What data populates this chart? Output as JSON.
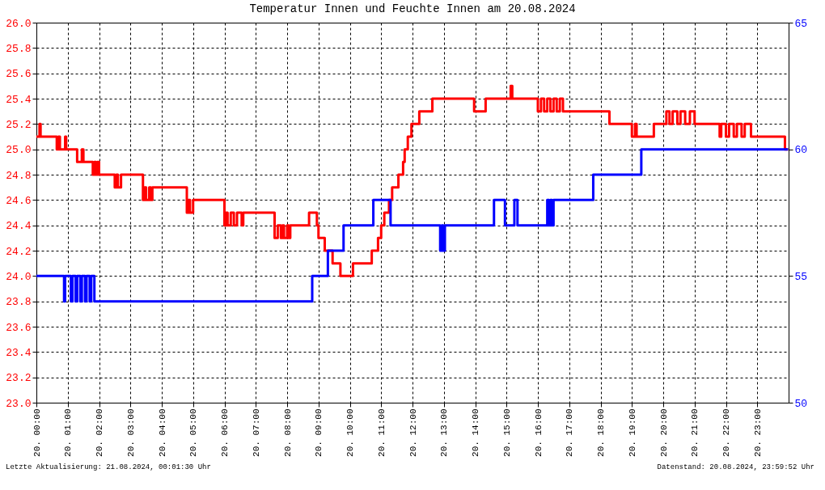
{
  "chart_data": {
    "type": "step",
    "title": "Temperatur Innen und Feuchte Innen am 20.08.2024",
    "xlim": [
      "2024-08-20T00:00",
      "2024-08-21T00:00"
    ],
    "xticks": [
      {
        "value": "2024-08-20T00:00",
        "label": "20. 00:00"
      },
      {
        "value": "2024-08-20T01:00",
        "label": "20. 01:00"
      },
      {
        "value": "2024-08-20T02:00",
        "label": "20. 02:00"
      },
      {
        "value": "2024-08-20T03:00",
        "label": "20. 03:00"
      },
      {
        "value": "2024-08-20T04:00",
        "label": "20. 04:00"
      },
      {
        "value": "2024-08-20T05:00",
        "label": "20. 05:00"
      },
      {
        "value": "2024-08-20T06:00",
        "label": "20. 06:00"
      },
      {
        "value": "2024-08-20T07:00",
        "label": "20. 07:00"
      },
      {
        "value": "2024-08-20T08:00",
        "label": "20. 08:00"
      },
      {
        "value": "2024-08-20T09:00",
        "label": "20. 09:00"
      },
      {
        "value": "2024-08-20T10:00",
        "label": "20. 10:00"
      },
      {
        "value": "2024-08-20T11:00",
        "label": "20. 11:00"
      },
      {
        "value": "2024-08-20T12:00",
        "label": "20. 12:00"
      },
      {
        "value": "2024-08-20T13:00",
        "label": "20. 13:00"
      },
      {
        "value": "2024-08-20T14:00",
        "label": "20. 14:00"
      },
      {
        "value": "2024-08-20T15:00",
        "label": "20. 15:00"
      },
      {
        "value": "2024-08-20T16:00",
        "label": "20. 16:00"
      },
      {
        "value": "2024-08-20T17:00",
        "label": "20. 17:00"
      },
      {
        "value": "2024-08-20T18:00",
        "label": "20. 18:00"
      },
      {
        "value": "2024-08-20T19:00",
        "label": "20. 19:00"
      },
      {
        "value": "2024-08-20T20:00",
        "label": "20. 20:00"
      },
      {
        "value": "2024-08-20T21:00",
        "label": "20. 21:00"
      },
      {
        "value": "2024-08-20T22:00",
        "label": "20. 22:00"
      },
      {
        "value": "2024-08-20T23:00",
        "label": "20. 23:00"
      }
    ],
    "ylim": [
      23,
      26
    ],
    "yticks": [
      {
        "value": 23,
        "label": "23.0"
      },
      {
        "value": 23.2,
        "label": "23.2"
      },
      {
        "value": 23.4,
        "label": "23.4"
      },
      {
        "value": 23.6,
        "label": "23.6"
      },
      {
        "value": 23.8,
        "label": "23.8"
      },
      {
        "value": 24,
        "label": "24.0"
      },
      {
        "value": 24.2,
        "label": "24.2"
      },
      {
        "value": 24.4,
        "label": "24.4"
      },
      {
        "value": 24.6,
        "label": "24.6"
      },
      {
        "value": 24.8,
        "label": "24.8"
      },
      {
        "value": 25,
        "label": "25.0"
      },
      {
        "value": 25.2,
        "label": "25.2"
      },
      {
        "value": 25.4,
        "label": "25.4"
      },
      {
        "value": 25.6,
        "label": "25.6"
      },
      {
        "value": 25.8,
        "label": "25.8"
      },
      {
        "value": 26,
        "label": "26.0"
      }
    ],
    "y2lim": [
      50,
      65
    ],
    "y2ticks": [
      50,
      55,
      60,
      65
    ],
    "grid": true,
    "line_style": "solid",
    "marker": "none",
    "series": [
      {
        "color": "#ff0000",
        "axis": "y",
        "x": [
          "2024-08-20T00:00",
          "2024-08-20T00:06",
          "2024-08-20T00:08",
          "2024-08-20T00:39",
          "2024-08-20T00:42",
          "2024-08-20T00:45",
          "2024-08-20T00:48",
          "2024-08-20T00:55",
          "2024-08-20T00:57",
          "2024-08-20T01:18",
          "2024-08-20T01:27",
          "2024-08-20T01:30",
          "2024-08-20T01:48",
          "2024-08-20T01:51",
          "2024-08-20T01:54",
          "2024-08-20T01:57",
          "2024-08-20T02:00",
          "2024-08-20T02:30",
          "2024-08-20T02:33",
          "2024-08-20T02:36",
          "2024-08-20T02:42",
          "2024-08-20T03:24",
          "2024-08-20T03:27",
          "2024-08-20T03:30",
          "2024-08-20T03:36",
          "2024-08-20T03:39",
          "2024-08-20T03:42",
          "2024-08-20T04:48",
          "2024-08-20T04:51",
          "2024-08-20T04:54",
          "2024-08-20T05:00",
          "2024-08-20T06:00",
          "2024-08-20T06:03",
          "2024-08-20T06:06",
          "2024-08-20T06:12",
          "2024-08-20T06:18",
          "2024-08-20T06:24",
          "2024-08-20T06:33",
          "2024-08-20T06:36",
          "2024-08-20T07:36",
          "2024-08-20T07:42",
          "2024-08-20T07:48",
          "2024-08-20T07:51",
          "2024-08-20T07:54",
          "2024-08-20T08:00",
          "2024-08-20T08:03",
          "2024-08-20T08:06",
          "2024-08-20T08:42",
          "2024-08-20T08:57",
          "2024-08-20T09:00",
          "2024-08-20T09:03",
          "2024-08-20T09:12",
          "2024-08-20T09:27",
          "2024-08-20T09:42",
          "2024-08-20T10:06",
          "2024-08-20T10:42",
          "2024-08-20T10:54",
          "2024-08-20T11:00",
          "2024-08-20T11:06",
          "2024-08-20T11:15",
          "2024-08-20T11:21",
          "2024-08-20T11:33",
          "2024-08-20T11:42",
          "2024-08-20T11:45",
          "2024-08-20T11:51",
          "2024-08-20T11:58",
          "2024-08-20T12:13",
          "2024-08-20T12:38",
          "2024-08-20T13:58",
          "2024-08-20T14:20",
          "2024-08-20T15:08",
          "2024-08-20T15:11",
          "2024-08-20T16:00",
          "2024-08-20T16:06",
          "2024-08-20T16:12",
          "2024-08-20T16:18",
          "2024-08-20T16:24",
          "2024-08-20T16:30",
          "2024-08-20T16:36",
          "2024-08-20T16:42",
          "2024-08-20T16:48",
          "2024-08-20T16:51",
          "2024-08-20T18:17",
          "2024-08-20T18:24",
          "2024-08-20T19:00",
          "2024-08-20T19:06",
          "2024-08-20T19:09",
          "2024-08-20T19:42",
          "2024-08-20T20:06",
          "2024-08-20T20:12",
          "2024-08-20T20:18",
          "2024-08-20T20:27",
          "2024-08-20T20:33",
          "2024-08-20T20:42",
          "2024-08-20T20:51",
          "2024-08-20T21:00",
          "2024-08-20T21:48",
          "2024-08-20T21:51",
          "2024-08-20T22:00",
          "2024-08-20T22:06",
          "2024-08-20T22:15",
          "2024-08-20T22:21",
          "2024-08-20T22:30",
          "2024-08-20T22:36",
          "2024-08-20T22:48",
          "2024-08-20T23:53",
          "2024-08-20T23:59"
        ],
        "values": [
          25.1,
          25.2,
          25.1,
          25.0,
          25.1,
          25.0,
          25.0,
          25.1,
          25.0,
          24.9,
          25.0,
          24.9,
          24.8,
          24.9,
          24.8,
          24.9,
          24.8,
          24.7,
          24.8,
          24.7,
          24.8,
          24.6,
          24.7,
          24.6,
          24.7,
          24.6,
          24.7,
          24.5,
          24.6,
          24.5,
          24.6,
          24.4,
          24.5,
          24.4,
          24.5,
          24.4,
          24.5,
          24.4,
          24.5,
          24.3,
          24.4,
          24.3,
          24.4,
          24.3,
          24.4,
          24.3,
          24.4,
          24.5,
          24.4,
          24.3,
          24.3,
          24.2,
          24.1,
          24.0,
          24.1,
          24.2,
          24.3,
          24.4,
          24.5,
          24.6,
          24.7,
          24.8,
          24.9,
          25.0,
          25.1,
          25.2,
          25.3,
          25.4,
          25.3,
          25.4,
          25.5,
          25.4,
          25.3,
          25.4,
          25.3,
          25.4,
          25.3,
          25.4,
          25.3,
          25.4,
          25.3,
          25.3,
          25.2,
          25.2,
          25.1,
          25.2,
          25.1,
          25.2,
          25.3,
          25.2,
          25.3,
          25.2,
          25.3,
          25.2,
          25.3,
          25.2,
          25.1,
          25.2,
          25.1,
          25.2,
          25.1,
          25.2,
          25.1,
          25.2,
          25.1,
          25.0,
          25.0
        ]
      },
      {
        "color": "#0000ff",
        "axis": "y2",
        "x": [
          "2024-08-20T00:00",
          "2024-08-20T00:53",
          "2024-08-20T00:55",
          "2024-08-20T01:06",
          "2024-08-20T01:09",
          "2024-08-20T01:15",
          "2024-08-20T01:18",
          "2024-08-20T01:24",
          "2024-08-20T01:27",
          "2024-08-20T01:33",
          "2024-08-20T01:36",
          "2024-08-20T01:42",
          "2024-08-20T01:45",
          "2024-08-20T01:51",
          "2024-08-20T01:54",
          "2024-08-20T08:48",
          "2024-08-20T09:18",
          "2024-08-20T09:48",
          "2024-08-20T10:45",
          "2024-08-20T11:18",
          "2024-08-20T12:53",
          "2024-08-20T12:56",
          "2024-08-20T12:59",
          "2024-08-20T13:02",
          "2024-08-20T14:36",
          "2024-08-20T14:57",
          "2024-08-20T15:15",
          "2024-08-20T15:21",
          "2024-08-20T16:18",
          "2024-08-20T16:21",
          "2024-08-20T16:24",
          "2024-08-20T16:27",
          "2024-08-20T16:30",
          "2024-08-20T17:46",
          "2024-08-20T19:18",
          "2024-08-20T23:59"
        ],
        "values": [
          55,
          54,
          55,
          54,
          55,
          54,
          55,
          54,
          55,
          54,
          55,
          54,
          55,
          54,
          54,
          55,
          56,
          57,
          58,
          57,
          56,
          57,
          56,
          57,
          58,
          57,
          58,
          57,
          58,
          57,
          58,
          57,
          58,
          59,
          60,
          60
        ]
      }
    ],
    "annotations": [
      "Letzte Aktualisierung: 21.08.2024, 00:01:30 Uhr",
      "Datenstand: 20.08.2024, 23:59:52 Uhr"
    ]
  }
}
